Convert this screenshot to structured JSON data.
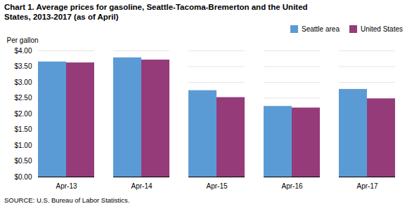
{
  "chart_data": {
    "type": "bar",
    "title": "Chart 1. Average prices for gasoline, Seattle-Tacoma-Bremerton and the United\nStates, 2013-2017  (as of April)",
    "ylabel": "Per gallon",
    "caption": "SOURCE: U.S. Bureau of Labor Statistics.",
    "categories": [
      "Apr-13",
      "Apr-14",
      "Apr-15",
      "Apr-16",
      "Apr-17"
    ],
    "series": [
      {
        "name": "Seattle area",
        "color": "#5B9BD5",
        "values": [
          3.65,
          3.78,
          2.74,
          2.24,
          2.78
        ]
      },
      {
        "name": "United States",
        "color": "#953B7A",
        "values": [
          3.62,
          3.71,
          2.52,
          2.19,
          2.48
        ]
      }
    ],
    "ylim": [
      0,
      4.0
    ],
    "yticks": [
      {
        "value": 0.0,
        "label": "$0.00"
      },
      {
        "value": 0.5,
        "label": "$0.50"
      },
      {
        "value": 1.0,
        "label": "$1.00"
      },
      {
        "value": 1.5,
        "label": "$1.50"
      },
      {
        "value": 2.0,
        "label": "$2.00"
      },
      {
        "value": 2.5,
        "label": "$2.50"
      },
      {
        "value": 3.0,
        "label": "$3.00"
      },
      {
        "value": 3.5,
        "label": "$3.50"
      },
      {
        "value": 4.0,
        "label": "$4.00"
      }
    ],
    "grid": true,
    "legend": "upper right"
  }
}
